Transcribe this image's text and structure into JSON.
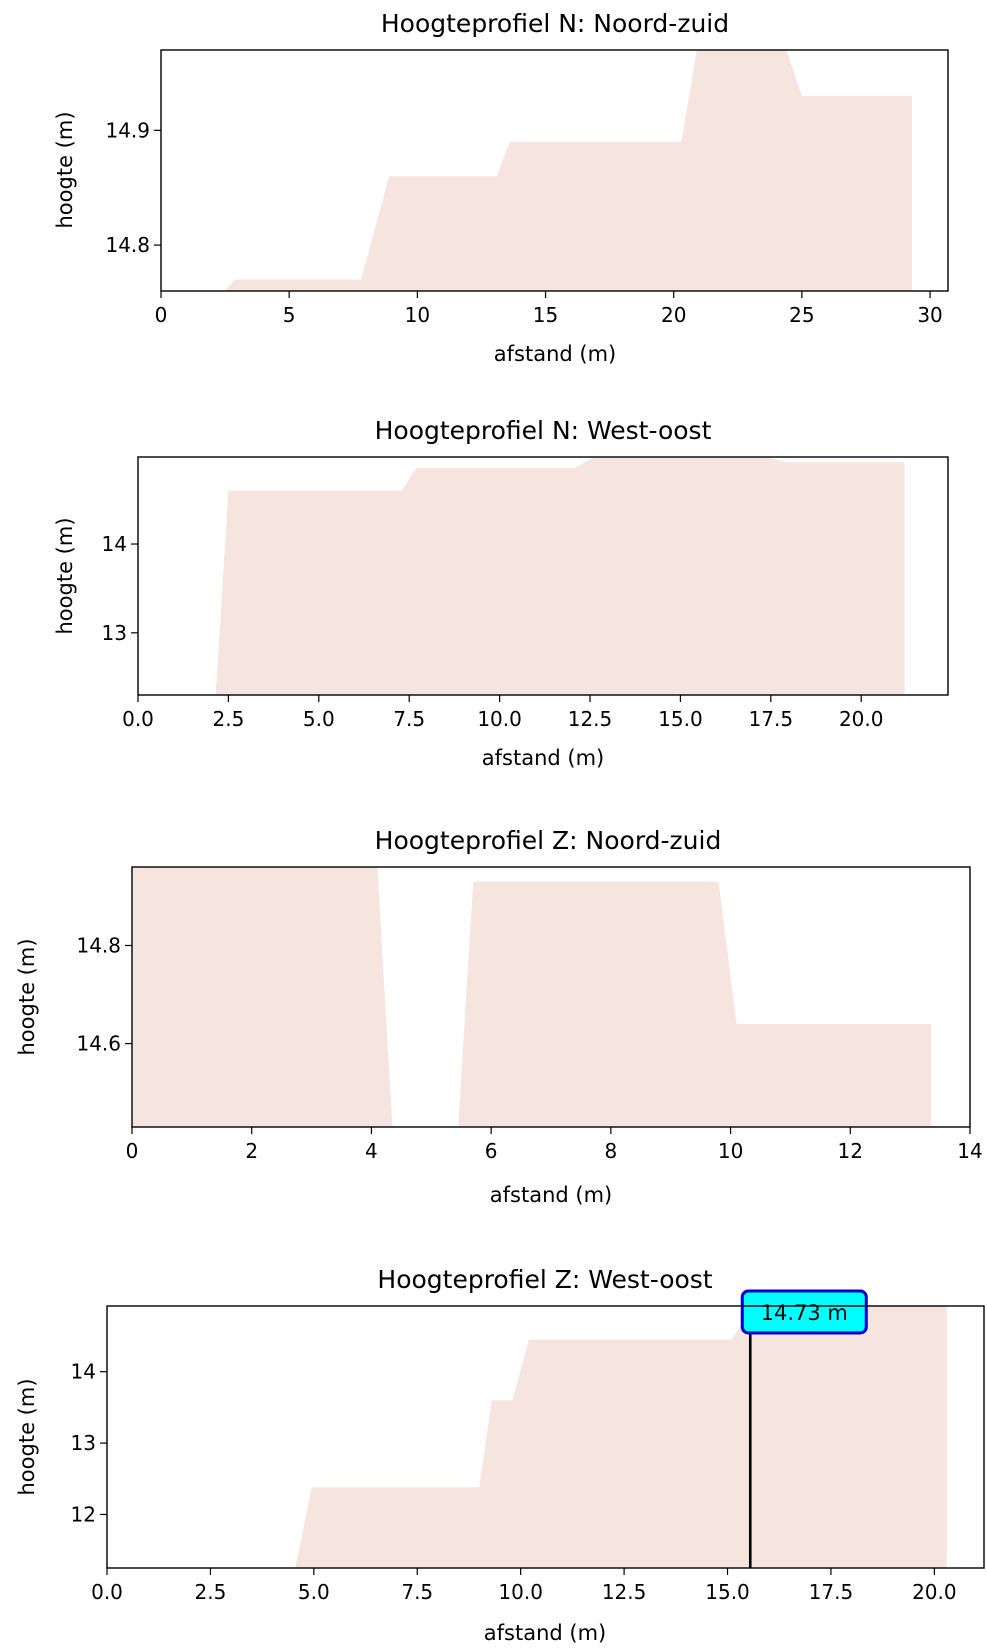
{
  "colors": {
    "fill": "#f6e5de",
    "axes": "#000000",
    "marker": "#000000",
    "annotation_face": "#00ffff",
    "annotation_edge": "#0000cc"
  },
  "chart_data": [
    {
      "type": "area",
      "title": "Hoogteprofiel N: Noord-zuid",
      "xlabel": "afstand (m)",
      "ylabel": "hoogte (m)",
      "xlim": [
        0,
        30.7
      ],
      "ylim": [
        14.76,
        14.97
      ],
      "xticks": [
        0,
        5,
        10,
        15,
        20,
        25,
        30
      ],
      "xtick_labels": [
        "0",
        "5",
        "10",
        "15",
        "20",
        "25",
        "30"
      ],
      "yticks": [
        14.8,
        14.9
      ],
      "ytick_labels": [
        "14.8",
        "14.9"
      ],
      "grid": false,
      "x": [
        2.5,
        2.9,
        7.8,
        8.9,
        13.1,
        13.6,
        20.3,
        20.9,
        24.4,
        25.0,
        29.3
      ],
      "y": [
        14.76,
        14.77,
        14.77,
        14.86,
        14.86,
        14.89,
        14.89,
        14.97,
        14.97,
        14.93,
        14.93
      ]
    },
    {
      "type": "area",
      "title": "Hoogteprofiel N: West-oost",
      "xlabel": "afstand (m)",
      "ylabel": "hoogte (m)",
      "xlim": [
        0,
        22.4
      ],
      "ylim": [
        12.3,
        14.98
      ],
      "xticks": [
        0,
        2.5,
        5,
        7.5,
        10,
        12.5,
        15,
        17.5,
        20
      ],
      "xtick_labels": [
        "0.0",
        "2.5",
        "5.0",
        "7.5",
        "10.0",
        "12.5",
        "15.0",
        "17.5",
        "20.0"
      ],
      "yticks": [
        13,
        14
      ],
      "ytick_labels": [
        "13",
        "14"
      ],
      "grid": false,
      "x": [
        2.15,
        2.5,
        7.3,
        7.7,
        12.1,
        12.6,
        17.4,
        17.9,
        21.2
      ],
      "y": [
        12.3,
        14.6,
        14.6,
        14.86,
        14.86,
        14.98,
        14.98,
        14.92,
        14.92
      ]
    },
    {
      "type": "area",
      "title": "Hoogteprofiel Z: Noord-zuid",
      "xlabel": "afstand (m)",
      "ylabel": "hoogte (m)",
      "xlim": [
        0,
        14
      ],
      "ylim": [
        14.43,
        14.96
      ],
      "xticks": [
        0,
        2,
        4,
        6,
        8,
        10,
        12,
        14
      ],
      "xtick_labels": [
        "0",
        "2",
        "4",
        "6",
        "8",
        "10",
        "12",
        "14"
      ],
      "yticks": [
        14.6,
        14.8
      ],
      "ytick_labels": [
        "14.6",
        "14.8"
      ],
      "grid": false,
      "segments": [
        {
          "x": [
            0,
            4.1,
            4.35
          ],
          "y": [
            14.96,
            14.96,
            14.43
          ]
        },
        {
          "x": [
            5.45,
            5.7,
            9.8,
            10.1,
            13.35
          ],
          "y": [
            14.43,
            14.93,
            14.93,
            14.64,
            14.64
          ]
        }
      ]
    },
    {
      "type": "area",
      "title": "Hoogteprofiel Z: West-oost",
      "xlabel": "afstand (m)",
      "ylabel": "hoogte (m)",
      "xlim": [
        0,
        21.2
      ],
      "ylim": [
        11.25,
        14.92
      ],
      "xticks": [
        0,
        2.5,
        5,
        7.5,
        10,
        12.5,
        15,
        17.5,
        20
      ],
      "xtick_labels": [
        "0.0",
        "2.5",
        "5.0",
        "7.5",
        "10.0",
        "12.5",
        "15.0",
        "17.5",
        "20.0"
      ],
      "yticks": [
        12,
        13,
        14
      ],
      "ytick_labels": [
        "12",
        "13",
        "14"
      ],
      "grid": false,
      "x": [
        4.55,
        4.95,
        9.0,
        9.3,
        9.8,
        10.2,
        15.1,
        15.6,
        20.3
      ],
      "y": [
        11.25,
        12.38,
        12.38,
        13.6,
        13.6,
        14.45,
        14.45,
        14.92,
        14.92
      ],
      "marker": {
        "x": 15.55,
        "label": "14.73 m"
      }
    }
  ]
}
